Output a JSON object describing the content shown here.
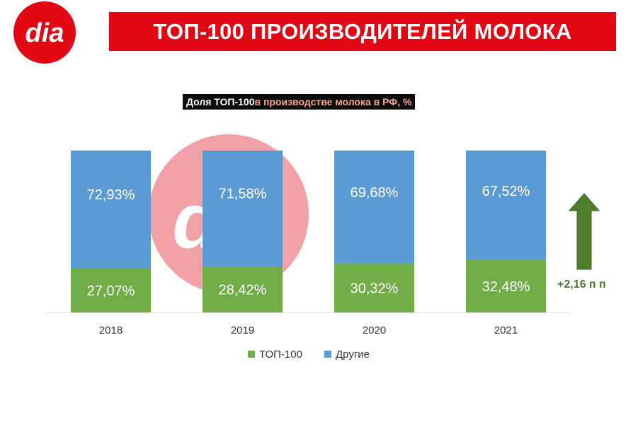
{
  "logo": {
    "text": "dia"
  },
  "header": {
    "title": "ТОП-100 ПРОИЗВОДИТЕЛЕЙ МОЛОКА"
  },
  "colors": {
    "brand_red": "#e30613",
    "top100": "#70ad47",
    "others": "#5b9bd5",
    "arrow": "#4e7e2a",
    "watermark": "#f29ba4"
  },
  "chart_title": {
    "part1": "Доля ТОП-100",
    "part2": " в производстве молока в РФ, %"
  },
  "chart_data": {
    "type": "bar",
    "stacked": true,
    "categories": [
      "2018",
      "2019",
      "2020",
      "2021"
    ],
    "series": [
      {
        "name": "ТОП-100",
        "values": [
          27.07,
          28.42,
          30.32,
          32.48
        ],
        "labels": [
          "27,07%",
          "28,42%",
          "30,32%",
          "32,48%"
        ]
      },
      {
        "name": "Другие",
        "values": [
          72.93,
          71.58,
          69.68,
          67.52
        ],
        "labels": [
          "72,93%",
          "71,58%",
          "69,68%",
          "67,52%"
        ]
      }
    ],
    "ylim": [
      0,
      100
    ],
    "legend": "bottom",
    "annotation": "+2,16 п п"
  }
}
